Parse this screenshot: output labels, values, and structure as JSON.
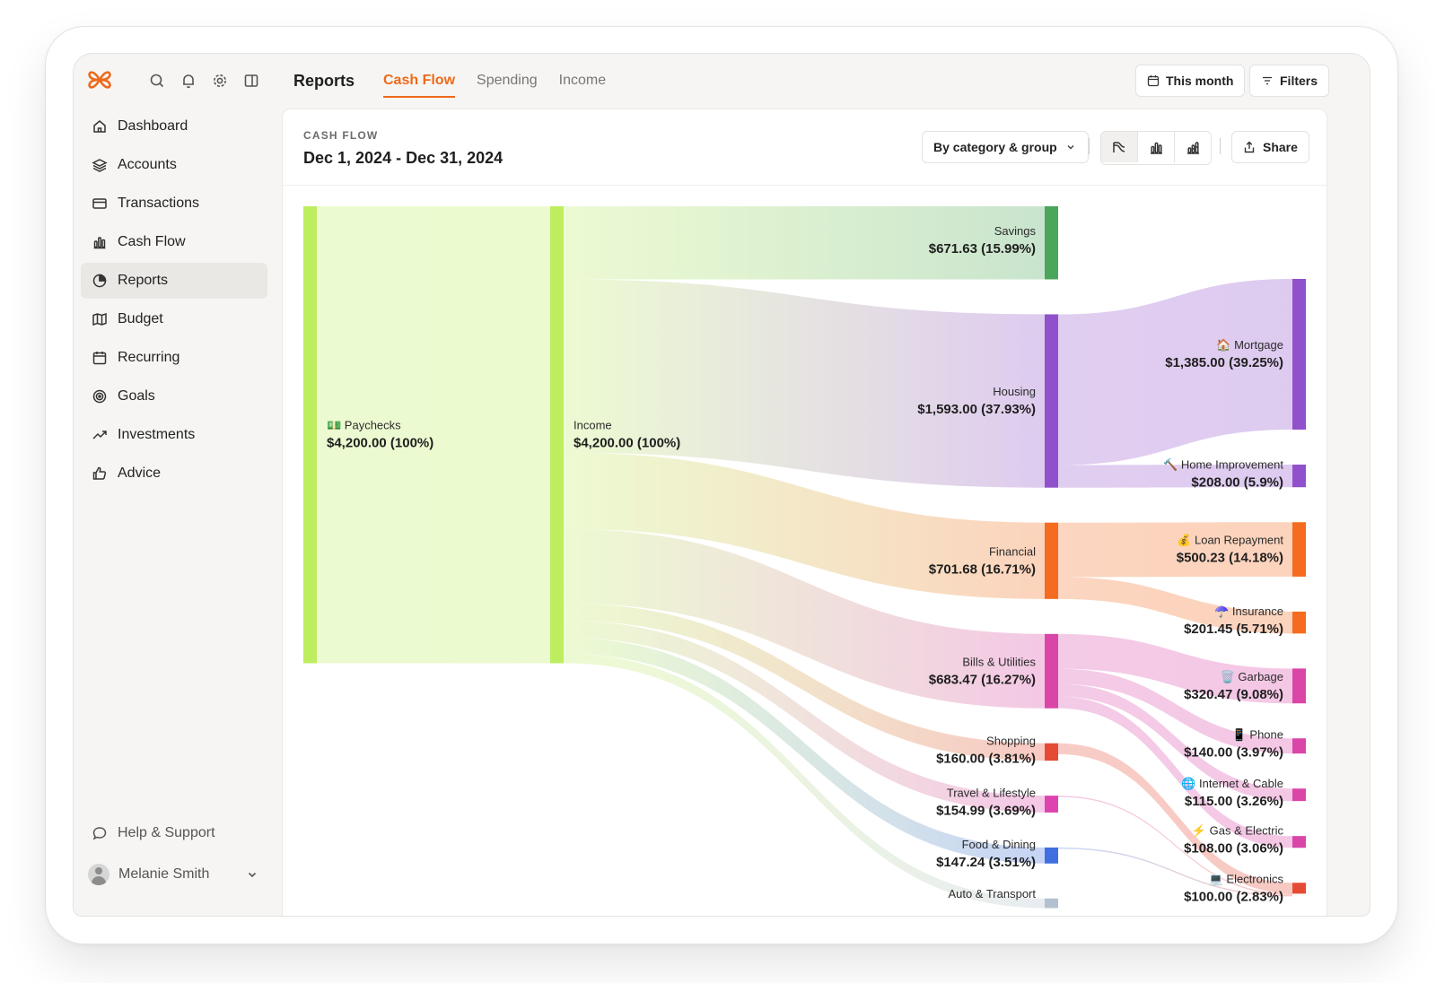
{
  "app": {
    "page_title": "Reports",
    "tabs": [
      {
        "label": "Cash Flow",
        "active": true
      },
      {
        "label": "Spending",
        "active": false
      },
      {
        "label": "Income",
        "active": false
      }
    ],
    "buttons": {
      "period": "This month",
      "filters": "Filters"
    },
    "accent_color": "#ee6a1b"
  },
  "sidebar": {
    "items": [
      {
        "label": "Dashboard",
        "icon": "home-icon",
        "active": false
      },
      {
        "label": "Accounts",
        "icon": "layers-icon",
        "active": false
      },
      {
        "label": "Transactions",
        "icon": "card-icon",
        "active": false
      },
      {
        "label": "Cash Flow",
        "icon": "bar-chart-icon",
        "active": false
      },
      {
        "label": "Reports",
        "icon": "pie-chart-icon",
        "active": true
      },
      {
        "label": "Budget",
        "icon": "map-icon",
        "active": false
      },
      {
        "label": "Recurring",
        "icon": "calendar-icon",
        "active": false
      },
      {
        "label": "Goals",
        "icon": "target-icon",
        "active": false
      },
      {
        "label": "Investments",
        "icon": "trend-up-icon",
        "active": false
      },
      {
        "label": "Advice",
        "icon": "thumbs-up-icon",
        "active": false
      }
    ],
    "help": "Help & Support",
    "user": "Melanie Smith"
  },
  "report": {
    "eyebrow": "CASH FLOW",
    "date_range": "Dec 1, 2024 - Dec 31, 2024",
    "grouping": "By category & group",
    "share": "Share",
    "view_modes": [
      "sankey-icon",
      "bar-chart-icon",
      "stacked-bar-icon"
    ]
  },
  "chart_data": {
    "type": "sankey",
    "unit": "USD",
    "nodes": [
      {
        "id": "paychecks",
        "label": "💵 Paychecks",
        "value": "$4,200.00 (100%)",
        "amount": 4200.0,
        "column": 0,
        "color": "#bdee5f"
      },
      {
        "id": "income",
        "label": "Income",
        "value": "$4,200.00 (100%)",
        "amount": 4200.0,
        "column": 1,
        "color": "#bdee5f"
      },
      {
        "id": "savings",
        "label": "Savings",
        "value": "$671.63 (15.99%)",
        "amount": 671.63,
        "column": 3,
        "color": "#4aa65a"
      },
      {
        "id": "housing",
        "label": "Housing",
        "value": "$1,593.00 (37.93%)",
        "amount": 1593.0,
        "column": 3,
        "color": "#9150cc"
      },
      {
        "id": "financial",
        "label": "Financial",
        "value": "$701.68 (16.71%)",
        "amount": 701.68,
        "column": 3,
        "color": "#f56b1f"
      },
      {
        "id": "bills",
        "label": "Bills & Utilities",
        "value": "$683.47 (16.27%)",
        "amount": 683.47,
        "column": 3,
        "color": "#d946a8"
      },
      {
        "id": "shopping",
        "label": "Shopping",
        "value": "$160.00 (3.81%)",
        "amount": 160.0,
        "column": 3,
        "color": "#e54a35"
      },
      {
        "id": "travel",
        "label": "Travel & Lifestyle",
        "value": "$154.99 (3.69%)",
        "amount": 154.99,
        "column": 3,
        "color": "#de44b0"
      },
      {
        "id": "food",
        "label": "Food & Dining",
        "value": "$147.24 (3.51%)",
        "amount": 147.24,
        "column": 3,
        "color": "#3f6fe0"
      },
      {
        "id": "auto",
        "label": "Auto & Transport",
        "value": "",
        "amount": null,
        "column": 3,
        "color": "#b3c0cf"
      },
      {
        "id": "mortgage",
        "label": "🏠 Mortgage",
        "value": "$1,385.00 (39.25%)",
        "amount": 1385.0,
        "column": 4,
        "color": "#9150cc"
      },
      {
        "id": "homeimp",
        "label": "🔨 Home Improvement",
        "value": "$208.00 (5.9%)",
        "amount": 208.0,
        "column": 4,
        "color": "#9150cc"
      },
      {
        "id": "loan",
        "label": "💰 Loan Repayment",
        "value": "$500.23 (14.18%)",
        "amount": 500.23,
        "column": 4,
        "color": "#f56b1f"
      },
      {
        "id": "insurance",
        "label": "☂️ Insurance",
        "value": "$201.45 (5.71%)",
        "amount": 201.45,
        "column": 4,
        "color": "#f56b1f"
      },
      {
        "id": "garbage",
        "label": "🗑️ Garbage",
        "value": "$320.47 (9.08%)",
        "amount": 320.47,
        "column": 4,
        "color": "#d946a8"
      },
      {
        "id": "phone",
        "label": "📱 Phone",
        "value": "$140.00 (3.97%)",
        "amount": 140.0,
        "column": 4,
        "color": "#d946a8"
      },
      {
        "id": "internet",
        "label": "🌐 Internet & Cable",
        "value": "$115.00 (3.26%)",
        "amount": 115.0,
        "column": 4,
        "color": "#d946a8"
      },
      {
        "id": "gas",
        "label": "⚡ Gas & Electric",
        "value": "$108.00 (3.06%)",
        "amount": 108.0,
        "column": 4,
        "color": "#d946a8"
      },
      {
        "id": "electronics",
        "label": "💻 Electronics",
        "value": "$100.00 (2.83%)",
        "amount": 100.0,
        "column": 4,
        "color": "#e54a35"
      }
    ],
    "links": [
      {
        "source": "paychecks",
        "target": "income",
        "amount": 4200.0
      },
      {
        "source": "income",
        "target": "savings",
        "amount": 671.63
      },
      {
        "source": "income",
        "target": "housing",
        "amount": 1593.0
      },
      {
        "source": "income",
        "target": "financial",
        "amount": 701.68
      },
      {
        "source": "income",
        "target": "bills",
        "amount": 683.47
      },
      {
        "source": "income",
        "target": "shopping",
        "amount": 160.0
      },
      {
        "source": "income",
        "target": "travel",
        "amount": 154.99
      },
      {
        "source": "income",
        "target": "food",
        "amount": 147.24
      },
      {
        "source": "income",
        "target": "auto",
        "amount": 88.0
      },
      {
        "source": "housing",
        "target": "mortgage",
        "amount": 1385.0
      },
      {
        "source": "housing",
        "target": "homeimp",
        "amount": 208.0
      },
      {
        "source": "financial",
        "target": "loan",
        "amount": 500.23
      },
      {
        "source": "financial",
        "target": "insurance",
        "amount": 201.45
      },
      {
        "source": "bills",
        "target": "garbage",
        "amount": 320.47
      },
      {
        "source": "bills",
        "target": "phone",
        "amount": 140.0
      },
      {
        "source": "bills",
        "target": "internet",
        "amount": 115.0
      },
      {
        "source": "bills",
        "target": "gas",
        "amount": 108.0
      },
      {
        "source": "shopping",
        "target": "electronics",
        "amount": 100.0
      },
      {
        "source": "travel",
        "target": "electronics",
        "amount": 40.0
      },
      {
        "source": "food",
        "target": "electronics",
        "amount": 60.0
      }
    ]
  }
}
